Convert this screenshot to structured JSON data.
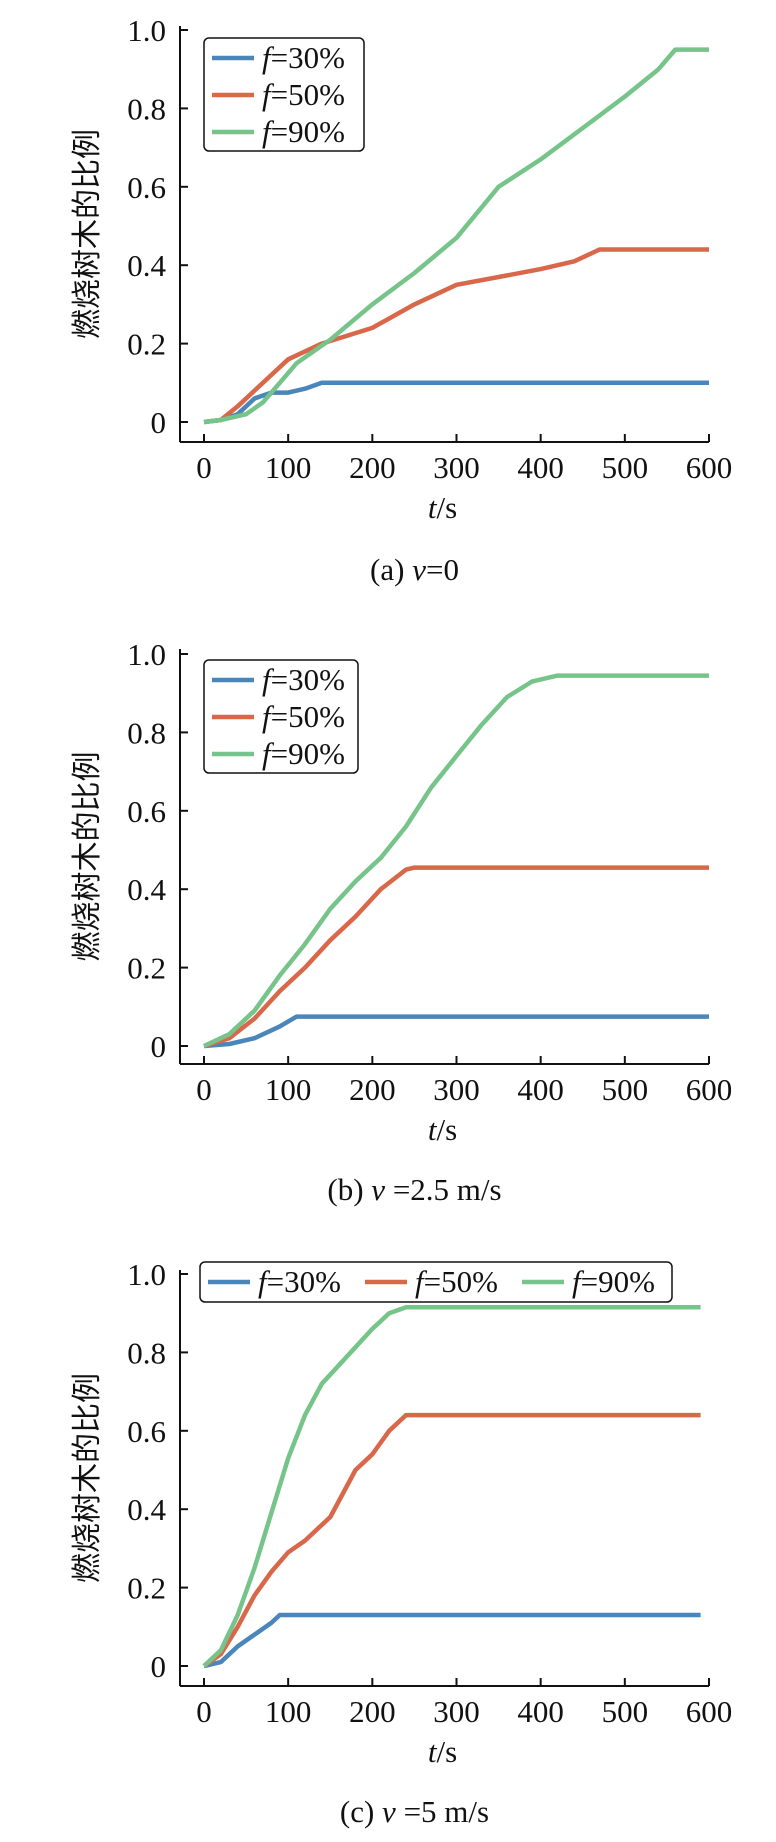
{
  "chart_data": [
    {
      "type": "line",
      "caption_prefix": "(a) ",
      "caption_var": "v",
      "caption_rest": "=0",
      "xlabel_var": "t",
      "xlabel_unit": "/s",
      "ylabel": "燃烧树木的比例",
      "xlim": [
        0,
        600
      ],
      "ylim": [
        0,
        1.0
      ],
      "xticks": [
        "0",
        "100",
        "200",
        "300",
        "400",
        "500",
        "600"
      ],
      "yticks": [
        "0",
        "0.2",
        "0.4",
        "0.6",
        "0.8",
        "1.0"
      ],
      "legend_layout": "vertical",
      "series": [
        {
          "name_var": "f",
          "name_rest": "=30%",
          "color": "#4a86b9",
          "points": [
            [
              0,
              0
            ],
            [
              20,
              0.005
            ],
            [
              40,
              0.02
            ],
            [
              60,
              0.06
            ],
            [
              80,
              0.075
            ],
            [
              100,
              0.075
            ],
            [
              120,
              0.085
            ],
            [
              140,
              0.1
            ],
            [
              600,
              0.1
            ]
          ]
        },
        {
          "name_var": "f",
          "name_rest": "=50%",
          "color": "#d9684a",
          "points": [
            [
              0,
              0
            ],
            [
              20,
              0.005
            ],
            [
              40,
              0.04
            ],
            [
              60,
              0.08
            ],
            [
              80,
              0.12
            ],
            [
              100,
              0.16
            ],
            [
              140,
              0.2
            ],
            [
              200,
              0.24
            ],
            [
              250,
              0.3
            ],
            [
              300,
              0.35
            ],
            [
              350,
              0.37
            ],
            [
              400,
              0.39
            ],
            [
              440,
              0.41
            ],
            [
              470,
              0.44
            ],
            [
              600,
              0.44
            ]
          ]
        },
        {
          "name_var": "f",
          "name_rest": "=90%",
          "color": "#76c48a",
          "points": [
            [
              0,
              0
            ],
            [
              20,
              0.005
            ],
            [
              50,
              0.02
            ],
            [
              70,
              0.05
            ],
            [
              90,
              0.1
            ],
            [
              110,
              0.15
            ],
            [
              150,
              0.21
            ],
            [
              200,
              0.3
            ],
            [
              250,
              0.38
            ],
            [
              300,
              0.47
            ],
            [
              350,
              0.6
            ],
            [
              400,
              0.67
            ],
            [
              450,
              0.75
            ],
            [
              500,
              0.83
            ],
            [
              540,
              0.9
            ],
            [
              560,
              0.95
            ],
            [
              600,
              0.95
            ]
          ]
        }
      ]
    },
    {
      "type": "line",
      "caption_prefix": "(b) ",
      "caption_var": "v",
      "caption_rest": " =2.5 m/s",
      "xlabel_var": "t",
      "xlabel_unit": "/s",
      "ylabel": "燃烧树木的比例",
      "xlim": [
        0,
        600
      ],
      "ylim": [
        0,
        1.0
      ],
      "xticks": [
        "0",
        "100",
        "200",
        "300",
        "400",
        "500",
        "600"
      ],
      "yticks": [
        "0",
        "0.2",
        "0.4",
        "0.6",
        "0.8",
        "1.0"
      ],
      "legend_layout": "vertical",
      "series": [
        {
          "name_var": "f",
          "name_rest": "=30%",
          "color": "#4a86b9",
          "points": [
            [
              0,
              0
            ],
            [
              30,
              0.005
            ],
            [
              60,
              0.02
            ],
            [
              90,
              0.05
            ],
            [
              110,
              0.075
            ],
            [
              600,
              0.075
            ]
          ]
        },
        {
          "name_var": "f",
          "name_rest": "=50%",
          "color": "#d9684a",
          "points": [
            [
              0,
              0
            ],
            [
              30,
              0.02
            ],
            [
              60,
              0.07
            ],
            [
              90,
              0.14
            ],
            [
              120,
              0.2
            ],
            [
              150,
              0.27
            ],
            [
              180,
              0.33
            ],
            [
              210,
              0.4
            ],
            [
              240,
              0.45
            ],
            [
              250,
              0.455
            ],
            [
              600,
              0.455
            ]
          ]
        },
        {
          "name_var": "f",
          "name_rest": "=90%",
          "color": "#76c48a",
          "points": [
            [
              0,
              0
            ],
            [
              30,
              0.03
            ],
            [
              60,
              0.09
            ],
            [
              90,
              0.18
            ],
            [
              120,
              0.26
            ],
            [
              150,
              0.35
            ],
            [
              180,
              0.42
            ],
            [
              210,
              0.48
            ],
            [
              240,
              0.56
            ],
            [
              270,
              0.66
            ],
            [
              300,
              0.74
            ],
            [
              330,
              0.82
            ],
            [
              360,
              0.89
            ],
            [
              390,
              0.93
            ],
            [
              420,
              0.945
            ],
            [
              600,
              0.945
            ]
          ]
        }
      ]
    },
    {
      "type": "line",
      "caption_prefix": "(c) ",
      "caption_var": "v",
      "caption_rest": " =5 m/s",
      "xlabel_var": "t",
      "xlabel_unit": "/s",
      "ylabel": "燃烧树木的比例",
      "xlim": [
        0,
        600
      ],
      "ylim": [
        0,
        1.0
      ],
      "xticks": [
        "0",
        "100",
        "200",
        "300",
        "400",
        "500",
        "600"
      ],
      "yticks": [
        "0",
        "0.2",
        "0.4",
        "0.6",
        "0.8",
        "1.0"
      ],
      "legend_layout": "horizontal",
      "series": [
        {
          "name_var": "f",
          "name_rest": "=30%",
          "color": "#4a86b9",
          "points": [
            [
              0,
              0
            ],
            [
              20,
              0.01
            ],
            [
              40,
              0.05
            ],
            [
              60,
              0.08
            ],
            [
              80,
              0.11
            ],
            [
              90,
              0.13
            ],
            [
              590,
              0.13
            ]
          ]
        },
        {
          "name_var": "f",
          "name_rest": "=50%",
          "color": "#d9684a",
          "points": [
            [
              0,
              0
            ],
            [
              20,
              0.03
            ],
            [
              40,
              0.1
            ],
            [
              60,
              0.18
            ],
            [
              80,
              0.24
            ],
            [
              100,
              0.29
            ],
            [
              120,
              0.32
            ],
            [
              150,
              0.38
            ],
            [
              180,
              0.5
            ],
            [
              200,
              0.54
            ],
            [
              220,
              0.6
            ],
            [
              240,
              0.64
            ],
            [
              590,
              0.64
            ]
          ]
        },
        {
          "name_var": "f",
          "name_rest": "=90%",
          "color": "#76c48a",
          "points": [
            [
              0,
              0
            ],
            [
              20,
              0.04
            ],
            [
              40,
              0.13
            ],
            [
              60,
              0.25
            ],
            [
              80,
              0.39
            ],
            [
              100,
              0.53
            ],
            [
              120,
              0.64
            ],
            [
              140,
              0.72
            ],
            [
              170,
              0.79
            ],
            [
              200,
              0.86
            ],
            [
              220,
              0.9
            ],
            [
              240,
              0.915
            ],
            [
              590,
              0.915
            ]
          ]
        }
      ]
    }
  ]
}
